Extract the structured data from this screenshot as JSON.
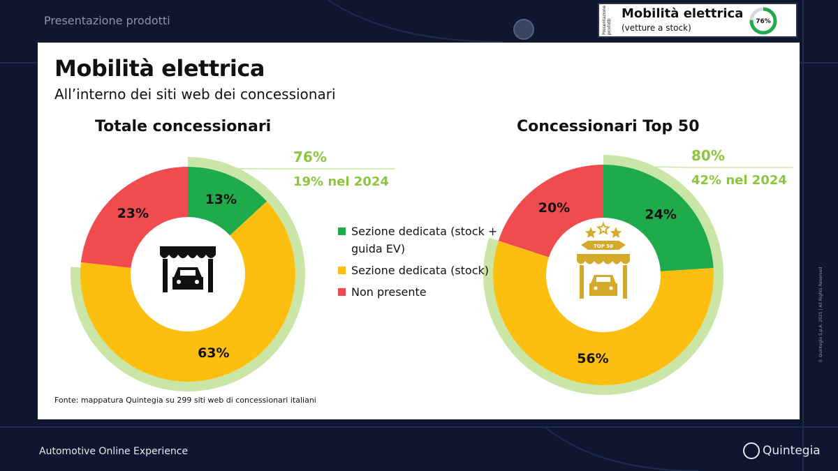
{
  "header": {
    "section_label": "Presentazione prodotti",
    "badge": {
      "side_label": "Presentazione prodotti",
      "title": "Mobilità elettrica",
      "subtitle": "(vetture a stock)",
      "ring_value": 76,
      "ring_label": "76%"
    }
  },
  "card": {
    "title": "Mobilità elettrica",
    "subtitle": "All’interno dei siti web dei concessionari",
    "source": "Fonte: mappatura Quintegia su 299 siti web di concessionari italiani"
  },
  "legend": [
    {
      "label": "Sezione dedicata (stock + guida EV)",
      "color": "#1faa4b"
    },
    {
      "label": "Sezione dedicata (stock)",
      "color": "#fdbf0f"
    },
    {
      "label": "Non presente",
      "color": "#f04c4f"
    }
  ],
  "colors": {
    "green": "#1faa4b",
    "yellow": "#fdbf0f",
    "red": "#f04c4f",
    "light_green": "#c9e6a7",
    "accent_text": "#8cc63f",
    "gold_icon": "#d4aa2a",
    "background": "#0f1730"
  },
  "icons": {
    "chart1_center": "dealership-car-icon",
    "chart2_center": "top-50-dealership-icon",
    "top50_banner": "TOP 50"
  },
  "chart_data": [
    {
      "type": "pie",
      "title": "Totale concessionari",
      "categories": [
        "Sezione dedicata (stock + guida EV)",
        "Sezione dedicata (stock)",
        "Non presente"
      ],
      "values": [
        13,
        63,
        23
      ],
      "value_labels": [
        "13%",
        "63%",
        "23%"
      ],
      "highlight": {
        "value": 76,
        "label": "76%",
        "note": "19% nel 2024"
      }
    },
    {
      "type": "pie",
      "title": "Concessionari Top 50",
      "categories": [
        "Sezione dedicata (stock + guida EV)",
        "Sezione dedicata (stock)",
        "Non presente"
      ],
      "values": [
        24,
        56,
        20
      ],
      "value_labels": [
        "24%",
        "56%",
        "20%"
      ],
      "highlight": {
        "value": 80,
        "label": "80%",
        "note": "42% nel 2024"
      }
    }
  ],
  "footer": {
    "left": "Automotive Online Experience",
    "brand": "Quintegia",
    "copyright": "© Quintegia S.p.A. 2025 | All Rights Reserved"
  }
}
